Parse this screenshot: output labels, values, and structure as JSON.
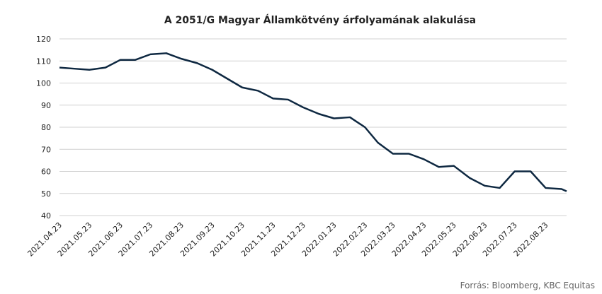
{
  "chart_data": {
    "type": "line",
    "title": "A 2051/G Magyar Államkötvény árfolyamának alakulása",
    "source": "Forrás: Bloomberg,  KBC Equitas",
    "x": [
      "2021.04.23",
      "2021.05.08",
      "2021.05.23",
      "2021.06.08",
      "2021.06.23",
      "2021.07.08",
      "2021.07.23",
      "2021.08.08",
      "2021.08.23",
      "2021.09.08",
      "2021.09.23",
      "2021.10.08",
      "2021.10.23",
      "2021.11.08",
      "2021.11.23",
      "2021.12.08",
      "2021.12.23",
      "2022.01.08",
      "2022.01.23",
      "2022.02.08",
      "2022.02.23",
      "2022.03.08",
      "2022.03.23",
      "2022.04.08",
      "2022.04.23",
      "2022.05.08",
      "2022.05.23",
      "2022.06.08",
      "2022.06.23",
      "2022.07.08",
      "2022.07.23",
      "2022.08.08",
      "2022.08.23",
      "2022.09.08",
      "2022.09.13"
    ],
    "series": [
      {
        "name": "2051/G",
        "color": "#0e2841",
        "values": [
          107,
          106.5,
          106,
          107,
          110.5,
          110.5,
          113,
          113.5,
          111,
          109,
          106,
          102,
          98,
          96.5,
          93,
          92.5,
          89,
          86,
          84,
          84.5,
          80,
          73,
          68,
          68,
          65.5,
          62,
          62.5,
          57,
          53.5,
          52.5,
          60,
          60,
          52.5,
          52,
          51
        ]
      }
    ],
    "xlim": [
      "2021.04.23",
      "2022.09.13"
    ],
    "xticks": [
      "2021.04.23",
      "2021.05.23",
      "2021.06.23",
      "2021.07.23",
      "2021.08.23",
      "2021.09.23",
      "2021.10.23",
      "2021.11.23",
      "2021.12.23",
      "2022.01.23",
      "2022.02.23",
      "2022.03.23",
      "2022.04.23",
      "2022.05.23",
      "2022.06.23",
      "2022.07.23",
      "2022.08.23"
    ],
    "ylim": [
      40,
      120
    ],
    "yticks": [
      40,
      50,
      60,
      70,
      80,
      90,
      100,
      110,
      120
    ],
    "grid": true
  }
}
